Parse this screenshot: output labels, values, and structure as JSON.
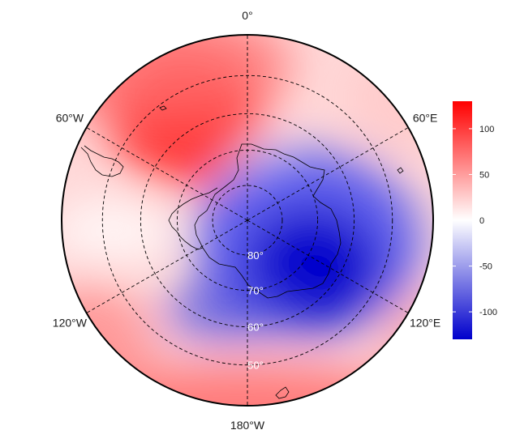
{
  "map": {
    "projection": "south-polar-stereographic",
    "colormap": {
      "low": "#0000cc",
      "mid": "#ffffff",
      "high": "#ff0000"
    },
    "value_range": [
      -130,
      130
    ],
    "longitude_labels": [
      {
        "lon": 0,
        "text": "0°"
      },
      {
        "lon": 60,
        "text": "60°E"
      },
      {
        "lon": 120,
        "text": "120°E"
      },
      {
        "lon": 180,
        "text": "180°W"
      },
      {
        "lon": -120,
        "text": "120°W"
      },
      {
        "lon": -60,
        "text": "60°W"
      }
    ],
    "latitude_labels": [
      {
        "lat": -80,
        "text": "80°"
      },
      {
        "lat": -70,
        "text": "70°"
      },
      {
        "lat": -60,
        "text": "60°"
      },
      {
        "lat": -50,
        "text": "50°"
      }
    ],
    "colorbar": {
      "ticks": [
        {
          "value": 100,
          "text": "100"
        },
        {
          "value": 50,
          "text": "50"
        },
        {
          "value": 0,
          "text": "0"
        },
        {
          "value": -50,
          "text": "-50"
        },
        {
          "value": -100,
          "text": "-100"
        }
      ]
    }
  }
}
